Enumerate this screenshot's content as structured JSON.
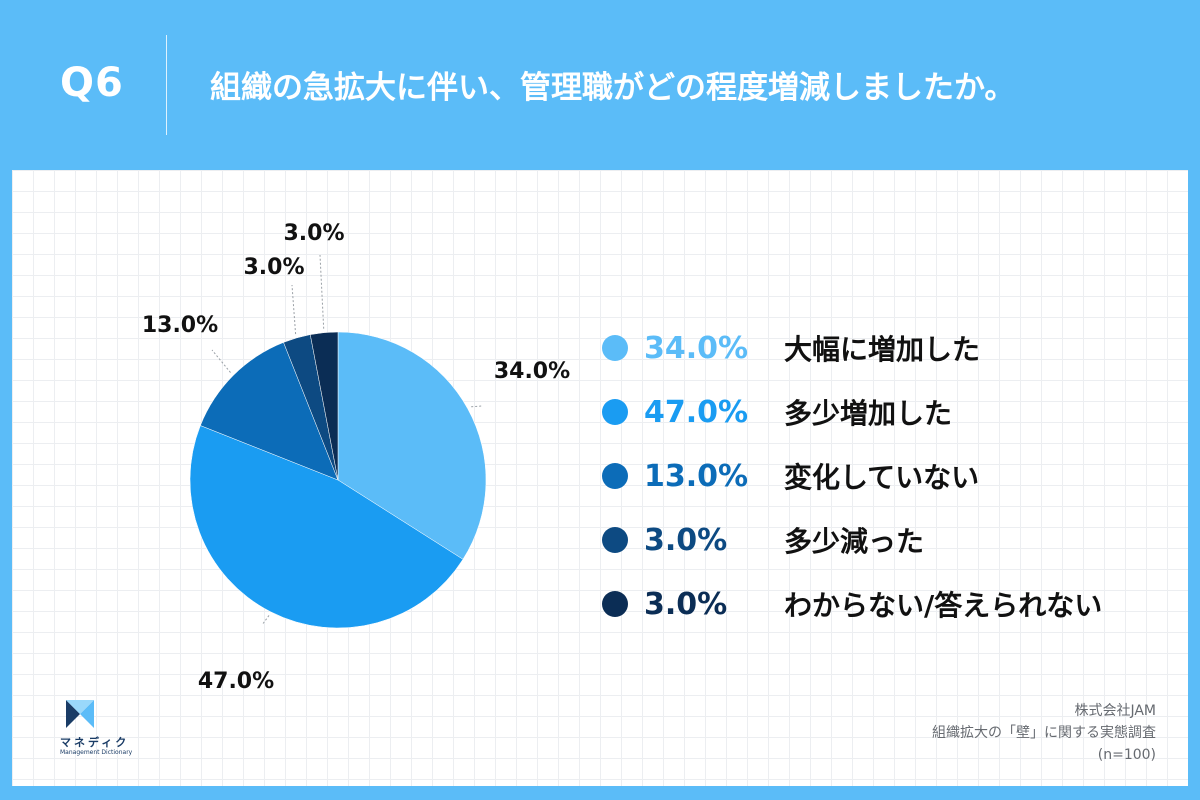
{
  "header": {
    "question_number": "Q6",
    "question_text": "組織の急拡大に伴い、管理職がどの程度増減しましたか。"
  },
  "colors": {
    "background": "#5bbcf8",
    "slice_1": "#5bbcf8",
    "slice_2": "#1a9cf2",
    "slice_3": "#0c6cb8",
    "slice_4": "#0d4a82",
    "slice_5": "#0b2d55"
  },
  "chart_data": {
    "type": "pie",
    "categories": [
      "大幅に増加した",
      "多少増加した",
      "変化していない",
      "多少減った",
      "わからない/答えられない"
    ],
    "values": [
      34.0,
      47.0,
      13.0,
      3.0,
      3.0
    ],
    "value_labels": [
      "34.0%",
      "47.0%",
      "13.0%",
      "3.0%",
      "3.0%"
    ],
    "legend_placement": "right",
    "start_angle": "top, clockwise"
  },
  "logo": {
    "text": "マネディク",
    "subtext": "Management Dictionary"
  },
  "footer": {
    "company": "株式会社JAM",
    "survey": "組織拡大の「壁」に関する実態調査",
    "sample": "(n=100)"
  }
}
